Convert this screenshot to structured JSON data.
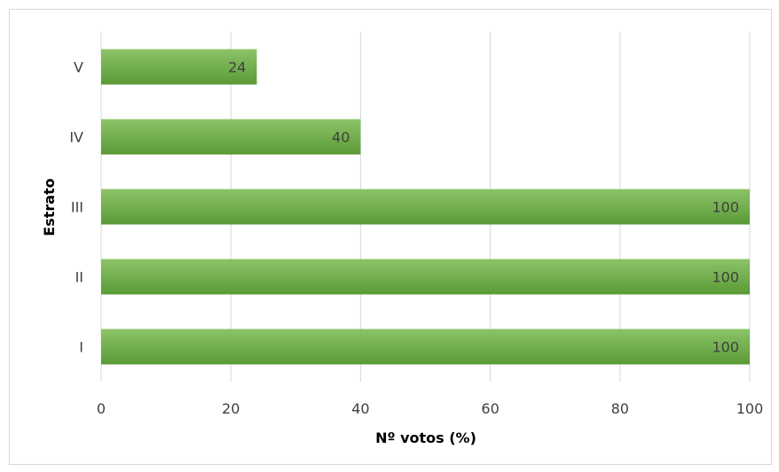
{
  "chart_data": {
    "type": "bar",
    "orientation": "horizontal",
    "categories": [
      "I",
      "II",
      "III",
      "IV",
      "V"
    ],
    "values": [
      100,
      100,
      100,
      40,
      24
    ],
    "data_labels": [
      "100",
      "100",
      "100",
      "40",
      "24"
    ],
    "xlabel": "Nº votos (%)",
    "ylabel": "Estrato",
    "xlim": [
      0,
      100
    ],
    "x_ticks": [
      0,
      20,
      40,
      60,
      80,
      100
    ],
    "x_tick_labels": [
      "0",
      "20",
      "40",
      "60",
      "80",
      "100"
    ],
    "grid": true,
    "legend": "none",
    "colors": {
      "bar_top": "#8cc468",
      "bar_bottom": "#5a9a36",
      "grid": "#d9d9d9",
      "text": "#404040"
    }
  }
}
